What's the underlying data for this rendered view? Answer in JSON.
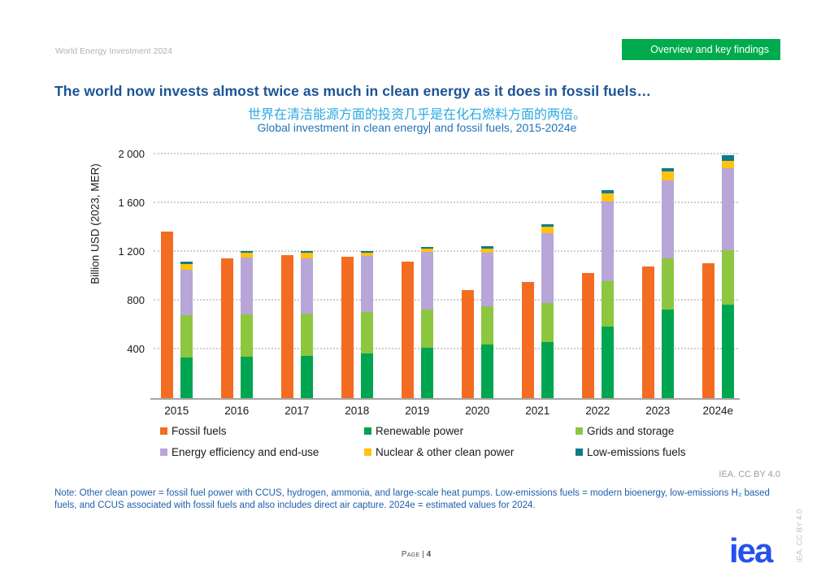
{
  "header": {
    "doc_title": "World Energy Investment 2024",
    "badge": "Overview and key findings",
    "badge_color": "#00ab4e"
  },
  "title": {
    "main": "The world now invests almost twice as much in clean energy as it does in fossil fuels…",
    "subtitle_zh": "世界在清洁能源方面的投资几乎是在化石燃料方面的两倍。",
    "subtitle_en_left": "Global investment in clean energy",
    "subtitle_en_right": " and fossil fuels, 2015-2024e"
  },
  "chart_data": {
    "type": "bar",
    "subtype": "grouped-pair-with-stack",
    "title": "Global investment in clean energy and fossil fuels, 2015-2024e",
    "xlabel": "",
    "ylabel": "Billion USD (2023, MER)",
    "unit": "billion USD (2023, MER)",
    "ylim": [
      0,
      2000
    ],
    "grid": "horizontal-dotted",
    "legend_position": "bottom",
    "yticks": [
      {
        "value": 400,
        "label": "400"
      },
      {
        "value": 800,
        "label": "800"
      },
      {
        "value": 1200,
        "label": "1 200"
      },
      {
        "value": 1600,
        "label": "1 600"
      },
      {
        "value": 2000,
        "label": "2 000"
      }
    ],
    "categories": [
      "2015",
      "2016",
      "2017",
      "2018",
      "2019",
      "2020",
      "2021",
      "2022",
      "2023",
      "2024e"
    ],
    "series": [
      {
        "name": "Fossil fuels",
        "color": "#f36c21",
        "stack": "fossil",
        "values": [
          1370,
          1145,
          1175,
          1160,
          1120,
          890,
          955,
          1030,
          1080,
          1110
        ]
      },
      {
        "name": "Renewable power",
        "color": "#00a551",
        "stack": "clean",
        "values": [
          335,
          340,
          350,
          370,
          415,
          440,
          460,
          590,
          730,
          765
        ]
      },
      {
        "name": "Grids and storage",
        "color": "#8dc63f",
        "stack": "clean",
        "values": [
          345,
          350,
          345,
          335,
          315,
          315,
          320,
          370,
          415,
          450
        ]
      },
      {
        "name": "Energy efficiency and end-use",
        "color": "#b7a6d7",
        "stack": "clean",
        "values": [
          375,
          465,
          455,
          465,
          470,
          440,
          575,
          655,
          640,
          670
        ]
      },
      {
        "name": "Nuclear & other clean power",
        "color": "#ffc20e",
        "stack": "clean",
        "values": [
          45,
          40,
          45,
          25,
          25,
          35,
          50,
          65,
          75,
          65
        ]
      },
      {
        "name": "Low-emissions fuels",
        "color": "#107a8c",
        "stack": "clean",
        "values": [
          20,
          10,
          15,
          15,
          15,
          15,
          20,
          25,
          25,
          45
        ]
      }
    ]
  },
  "attribution": {
    "inline": "IEA. CC BY 4.0",
    "vertical": "IEA. CC BY 4.0"
  },
  "note": {
    "text": "Note: Other clean power = fossil fuel power with CCUS, hydrogen, ammonia, and large-scale heat pumps. Low-emissions fuels = modern bioenergy, low-emissions H₂ based fuels, and CCUS associated with fossil fuels and also includes direct air capture. 2024e = estimated values for 2024."
  },
  "footer": {
    "page_label": "Page",
    "separator": "|",
    "page_number": "4",
    "logo_text": "iea"
  }
}
